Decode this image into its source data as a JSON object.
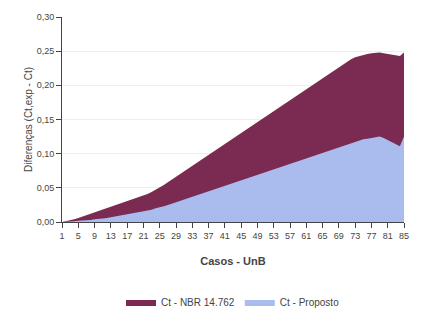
{
  "chart_data": {
    "type": "area",
    "xlabel": "Casos - UnB",
    "ylabel": "Diferenças (Ct,exp - Ct)",
    "x": [
      1,
      2,
      3,
      4,
      5,
      6,
      7,
      8,
      9,
      10,
      11,
      12,
      13,
      14,
      15,
      16,
      17,
      18,
      19,
      20,
      21,
      22,
      23,
      24,
      25,
      26,
      27,
      28,
      29,
      30,
      31,
      32,
      33,
      34,
      35,
      36,
      37,
      38,
      39,
      40,
      41,
      42,
      43,
      44,
      45,
      46,
      47,
      48,
      49,
      50,
      51,
      52,
      53,
      54,
      55,
      56,
      57,
      58,
      59,
      60,
      61,
      62,
      63,
      64,
      65,
      66,
      67,
      68,
      69,
      70,
      71,
      72,
      73,
      74,
      75,
      76,
      77,
      78,
      79,
      80,
      81,
      82,
      83,
      84,
      85
    ],
    "xlim": [
      1,
      85
    ],
    "xticks": [
      1,
      5,
      9,
      13,
      17,
      21,
      25,
      29,
      33,
      37,
      41,
      45,
      49,
      53,
      57,
      61,
      65,
      69,
      73,
      77,
      81,
      85
    ],
    "ylim": [
      0.0,
      0.3
    ],
    "yticks": [
      {
        "value": 0.0,
        "label": "0,00"
      },
      {
        "value": 0.05,
        "label": "0,05"
      },
      {
        "value": 0.1,
        "label": "0,10"
      },
      {
        "value": 0.15,
        "label": "0,15"
      },
      {
        "value": 0.2,
        "label": "0,20"
      },
      {
        "value": 0.25,
        "label": "0,25"
      },
      {
        "value": 0.3,
        "label": "0,30"
      }
    ],
    "grid": true,
    "legend": "bottom",
    "series": [
      {
        "name": "Ct - NBR 14.762",
        "color": "#7B2A52",
        "values": [
          0.0,
          0.001,
          0.002,
          0.004,
          0.006,
          0.008,
          0.01,
          0.012,
          0.014,
          0.016,
          0.018,
          0.02,
          0.022,
          0.024,
          0.026,
          0.028,
          0.03,
          0.032,
          0.034,
          0.036,
          0.038,
          0.041,
          0.044,
          0.047,
          0.05,
          0.054,
          0.058,
          0.062,
          0.066,
          0.07,
          0.074,
          0.078,
          0.082,
          0.086,
          0.09,
          0.094,
          0.098,
          0.102,
          0.106,
          0.11,
          0.114,
          0.118,
          0.122,
          0.126,
          0.13,
          0.134,
          0.138,
          0.142,
          0.146,
          0.15,
          0.154,
          0.158,
          0.162,
          0.166,
          0.17,
          0.174,
          0.178,
          0.182,
          0.186,
          0.19,
          0.194,
          0.198,
          0.202,
          0.206,
          0.21,
          0.214,
          0.218,
          0.222,
          0.226,
          0.23,
          0.234,
          0.238,
          0.241,
          0.243,
          0.245,
          0.246,
          0.247,
          0.248,
          0.248,
          0.247,
          0.246,
          0.245,
          0.244,
          0.243,
          0.248
        ]
      },
      {
        "name": "Ct - Proposto",
        "color": "#AABBEE",
        "values": [
          0.0,
          0.0,
          0.001,
          0.001,
          0.002,
          0.002,
          0.003,
          0.003,
          0.004,
          0.004,
          0.005,
          0.006,
          0.007,
          0.008,
          0.009,
          0.01,
          0.011,
          0.012,
          0.013,
          0.014,
          0.015,
          0.017,
          0.018,
          0.02,
          0.021,
          0.023,
          0.025,
          0.027,
          0.029,
          0.031,
          0.033,
          0.035,
          0.037,
          0.039,
          0.041,
          0.043,
          0.045,
          0.047,
          0.049,
          0.051,
          0.053,
          0.055,
          0.057,
          0.059,
          0.061,
          0.063,
          0.065,
          0.067,
          0.069,
          0.071,
          0.073,
          0.075,
          0.077,
          0.079,
          0.081,
          0.083,
          0.085,
          0.087,
          0.089,
          0.091,
          0.093,
          0.095,
          0.097,
          0.099,
          0.101,
          0.103,
          0.105,
          0.107,
          0.109,
          0.111,
          0.113,
          0.115,
          0.117,
          0.119,
          0.121,
          0.122,
          0.123,
          0.124,
          0.125,
          0.123,
          0.12,
          0.117,
          0.114,
          0.111,
          0.125
        ]
      }
    ]
  }
}
